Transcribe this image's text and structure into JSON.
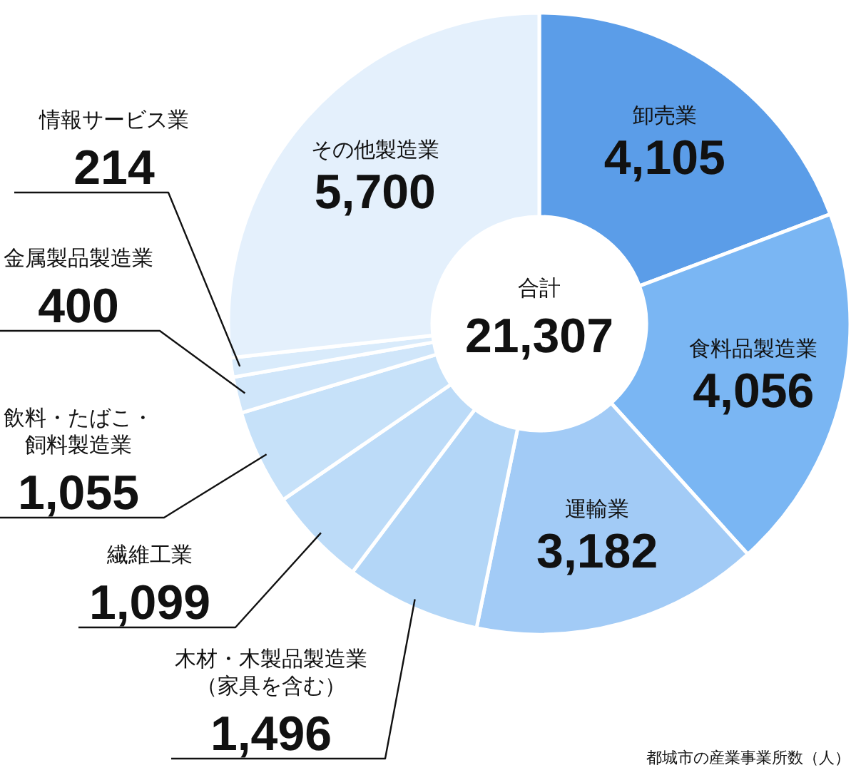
{
  "chart_data": {
    "type": "donut",
    "categories": [
      "卸売業",
      "食料品製造業",
      "運輸業",
      "木材・木製品製造業（家具を含む）",
      "繊維工業",
      "飲料・たばこ・飼料製造業",
      "金属製品製造業",
      "情報サービス業",
      "その他製造業"
    ],
    "values": [
      4105,
      4056,
      3182,
      1496,
      1099,
      1055,
      400,
      214,
      5700
    ],
    "colors": [
      "#5b9de8",
      "#7ab6f3",
      "#a2cbf6",
      "#b3d6f7",
      "#bcdbf8",
      "#c6e1f9",
      "#d0e6fa",
      "#d9ebfb",
      "#e4f0fc"
    ],
    "value_labels": [
      "4,105",
      "4,056",
      "3,182",
      "1,496",
      "1,099",
      "1,055",
      "400",
      "214",
      "5,700"
    ],
    "annotations": [
      "合計",
      "21,307",
      "都城市の産業事業所数（人）"
    ]
  }
}
